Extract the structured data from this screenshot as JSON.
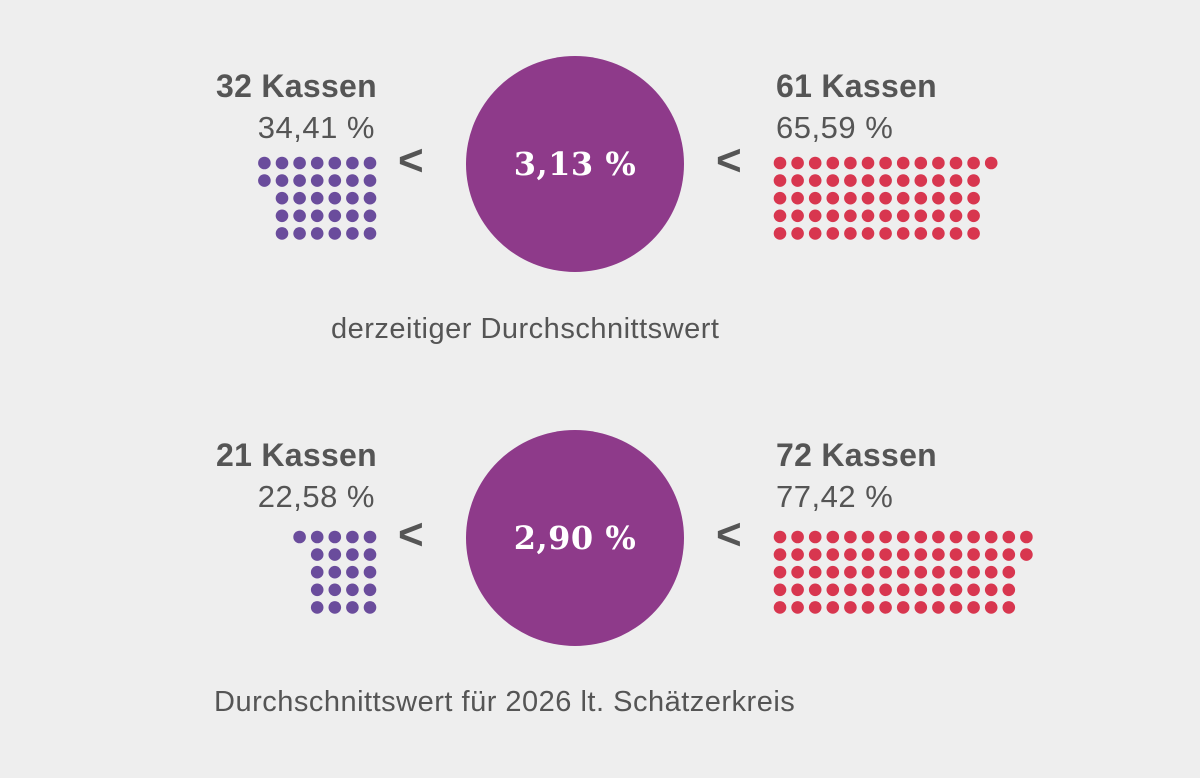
{
  "chart_data": [
    {
      "type": "waffle",
      "title": "derzeitiger  Durchschnittswert",
      "center_value": "3,13 %",
      "comparison_symbol": "<",
      "total": 93,
      "below": {
        "label": "32 Kassen",
        "percent": "34,41 %",
        "count": 32,
        "rows": [
          7,
          7,
          6,
          6,
          6
        ],
        "color": "#6a4c9c"
      },
      "above": {
        "label": "61 Kassen",
        "percent": "65,59 %",
        "count": 61,
        "rows": [
          13,
          12,
          12,
          12,
          12
        ],
        "color": "#d8364f"
      }
    },
    {
      "type": "waffle",
      "title": "Durchschnittswert für 2026 lt. Schätzerkreis",
      "center_value": "2,90 %",
      "comparison_symbol": "<",
      "total": 93,
      "below": {
        "label": "21 Kassen",
        "percent": "22,58 %",
        "count": 21,
        "rows": [
          5,
          4,
          4,
          4,
          4
        ],
        "color": "#6a4c9c"
      },
      "above": {
        "label": "72 Kassen",
        "percent": "77,42 %",
        "count": 72,
        "rows": [
          15,
          15,
          14,
          14,
          14
        ],
        "color": "#d8364f"
      }
    }
  ],
  "colors": {
    "circle": "#8e3a8a",
    "background": "#eeeeee",
    "text": "#555555"
  }
}
